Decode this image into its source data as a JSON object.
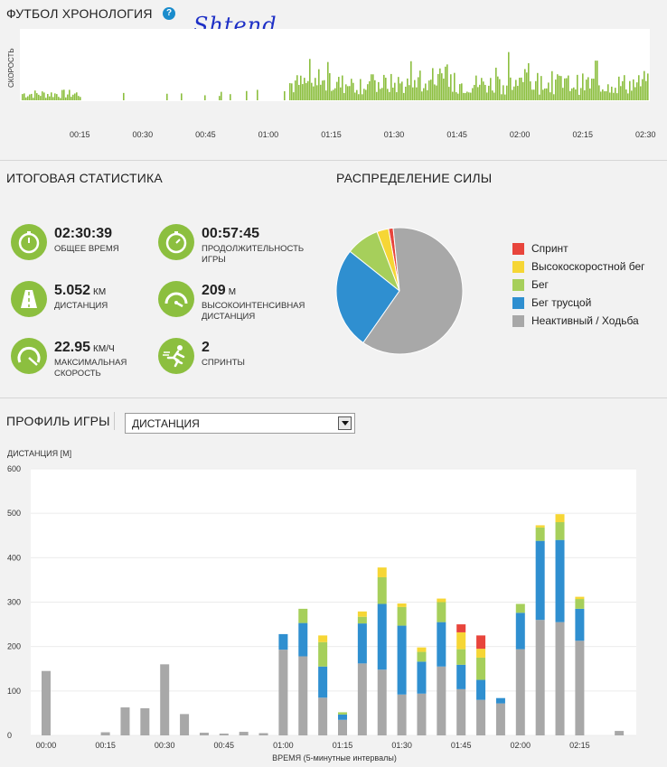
{
  "timeline": {
    "title": "ФУТБОЛ ХРОНОЛОГИЯ",
    "help": "?",
    "handwriting": "Shtend",
    "ylabel": "СКОРОСТЬ",
    "ticks": [
      "00:15",
      "00:30",
      "00:45",
      "01:00",
      "01:15",
      "01:30",
      "01:45",
      "02:00",
      "02:15",
      "02:30"
    ],
    "color": "#8cbf3f"
  },
  "summary": {
    "title": "ИТОГОВАЯ СТАТИСТИКА",
    "items": [
      {
        "value": "02:30:39",
        "unit": "",
        "label": "ОБЩЕЕ ВРЕМЯ",
        "icon": "stopwatch-icon"
      },
      {
        "value": "00:57:45",
        "unit": "",
        "label": "ПРОДОЛЖИТЕЛЬНОСТЬ ИГРЫ",
        "icon": "stopwatch-icon"
      },
      {
        "value": "5.052",
        "unit": "КМ",
        "label": "ДИСТАНЦИЯ",
        "icon": "road-icon"
      },
      {
        "value": "209",
        "unit": "М",
        "label": "ВЫСОКОИНТЕНСИВНАЯ ДИСТАНЦИЯ",
        "icon": "speedometer-icon"
      },
      {
        "value": "22.95",
        "unit": "КМ/Ч",
        "label": "МАКСИМАЛЬНАЯ СКОРОСТЬ",
        "icon": "gauge-icon"
      },
      {
        "value": "2",
        "unit": "",
        "label": "СПРИНТЫ",
        "icon": "sprinter-icon"
      }
    ]
  },
  "power": {
    "title": "РАСПРЕДЕЛЕНИЕ СИЛЫ",
    "legend": [
      {
        "label": "Спринт",
        "color": "#e8453c"
      },
      {
        "label": "Высокоскоростной бег",
        "color": "#f6d635"
      },
      {
        "label": "Бег",
        "color": "#a6cf5b"
      },
      {
        "label": "Бег трусцой",
        "color": "#2f8fd0"
      },
      {
        "label": "Неактивный / Ходьба",
        "color": "#a8a8a8"
      }
    ],
    "chart_data": {
      "type": "pie",
      "labels": [
        "Спринт",
        "Высокоскоростной бег",
        "Бег",
        "Бег трусцой",
        "Неактивный / Ходьба"
      ],
      "values": [
        1.2,
        3,
        8.5,
        26,
        61.3
      ]
    }
  },
  "profile": {
    "title": "ПРОФИЛЬ ИГРЫ",
    "dropdown": "ДИСТАНЦИЯ",
    "chart_data": {
      "type": "bar",
      "stacked": true,
      "ylabel": "ДИСТАНЦИЯ [М]",
      "xlabel": "ВРЕМЯ (5-минутные интервалы)",
      "ylim": [
        0,
        600
      ],
      "yticks": [
        "0",
        "100",
        "200",
        "300",
        "400",
        "500",
        "600"
      ],
      "xticks": [
        "00:00",
        "00:15",
        "00:30",
        "00:45",
        "01:00",
        "01:15",
        "01:30",
        "01:45",
        "02:00",
        "02:15"
      ],
      "categories": [
        "00:00",
        "00:05",
        "00:10",
        "00:15",
        "00:20",
        "00:25",
        "00:30",
        "00:35",
        "00:40",
        "00:45",
        "00:50",
        "00:55",
        "01:00",
        "01:05",
        "01:10",
        "01:15",
        "01:20",
        "01:25",
        "01:30",
        "01:35",
        "01:40",
        "01:45",
        "01:50",
        "01:55",
        "02:00",
        "02:05",
        "02:10",
        "02:15",
        "02:20",
        "02:25"
      ],
      "series": [
        {
          "name": "Неактивный / Ходьба",
          "color": "#a8a8a8",
          "values": [
            145,
            0,
            0,
            7,
            63,
            61,
            160,
            48,
            6,
            4,
            8,
            5,
            193,
            178,
            85,
            35,
            162,
            148,
            92,
            94,
            155,
            104,
            80,
            72,
            194,
            260,
            255,
            213,
            0,
            10
          ]
        },
        {
          "name": "Бег трусцой",
          "color": "#2f8fd0",
          "values": [
            0,
            0,
            0,
            0,
            0,
            0,
            0,
            0,
            0,
            0,
            0,
            0,
            35,
            75,
            70,
            12,
            90,
            148,
            155,
            72,
            100,
            55,
            45,
            12,
            82,
            178,
            185,
            72,
            0,
            0
          ]
        },
        {
          "name": "Бег",
          "color": "#a6cf5b",
          "values": [
            0,
            0,
            0,
            0,
            0,
            0,
            0,
            0,
            0,
            0,
            0,
            0,
            0,
            32,
            55,
            5,
            15,
            60,
            42,
            22,
            45,
            35,
            50,
            0,
            20,
            30,
            40,
            22,
            0,
            0
          ]
        },
        {
          "name": "Высокоскоростной бег",
          "color": "#f6d635",
          "values": [
            0,
            0,
            0,
            0,
            0,
            0,
            0,
            0,
            0,
            0,
            0,
            0,
            0,
            0,
            15,
            0,
            12,
            22,
            8,
            10,
            8,
            38,
            20,
            0,
            0,
            5,
            18,
            5,
            0,
            0
          ]
        },
        {
          "name": "Спринт",
          "color": "#e8453c",
          "values": [
            0,
            0,
            0,
            0,
            0,
            0,
            0,
            0,
            0,
            0,
            0,
            0,
            0,
            0,
            0,
            0,
            0,
            0,
            0,
            0,
            0,
            18,
            30,
            0,
            0,
            0,
            0,
            0,
            0,
            0
          ]
        }
      ]
    }
  }
}
